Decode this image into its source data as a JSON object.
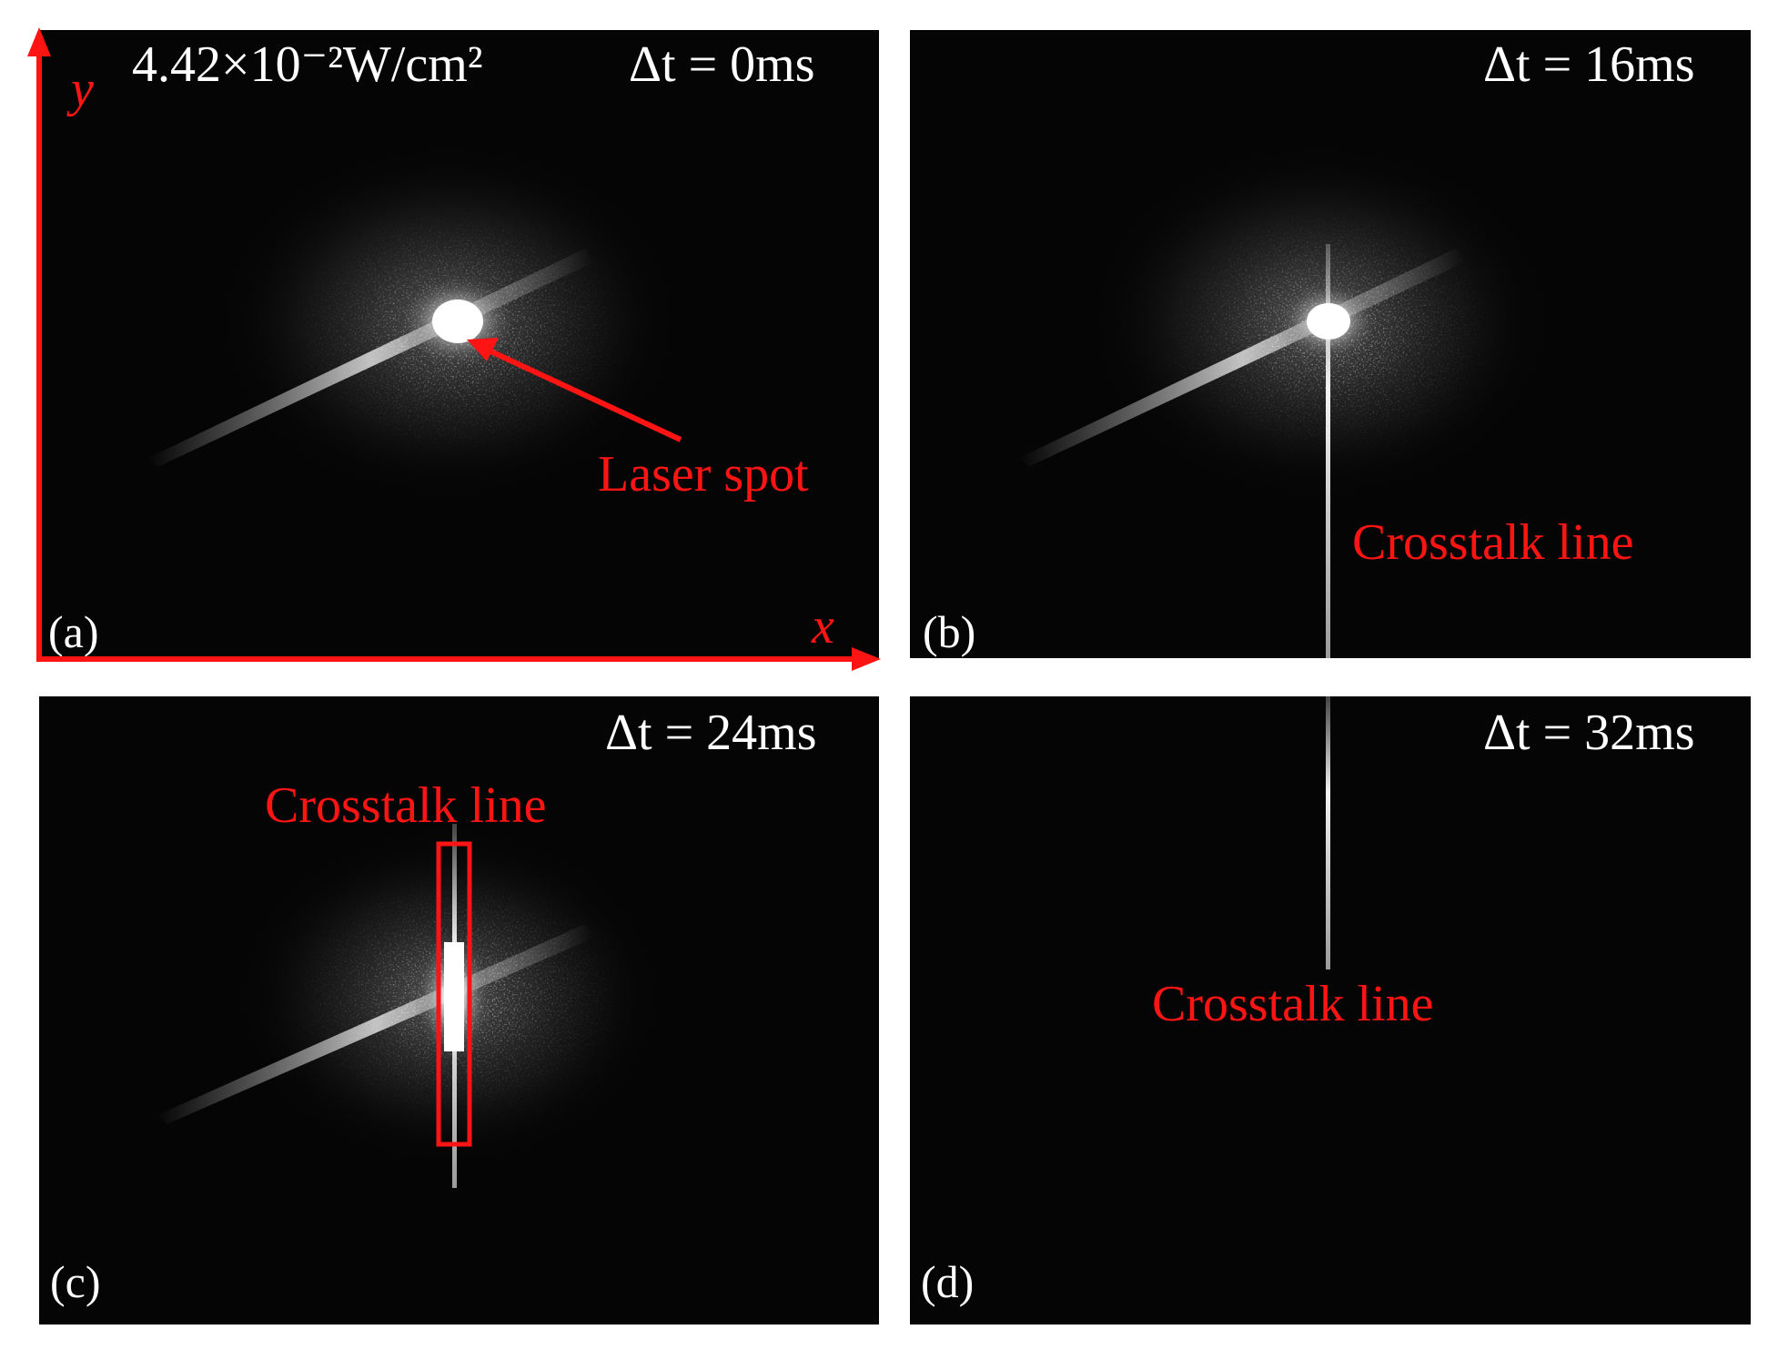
{
  "panels": [
    {
      "id": "a",
      "label": "(a)",
      "delta_t": "Δt = 0ms",
      "intensity": "4.42×10⁻²W/cm²",
      "annotation": "Laser spot",
      "crosstalk_visible": false
    },
    {
      "id": "b",
      "label": "(b)",
      "delta_t": "Δt = 16ms",
      "annotation": "Crosstalk line",
      "crosstalk_visible": true
    },
    {
      "id": "c",
      "label": "(c)",
      "delta_t": "Δt = 24ms",
      "annotation": "Crosstalk line",
      "crosstalk_visible": true
    },
    {
      "id": "d",
      "label": "(d)",
      "delta_t": "Δt = 32ms",
      "annotation": "Crosstalk line",
      "crosstalk_visible": true
    }
  ],
  "axes": {
    "x": "x",
    "y": "y"
  },
  "colors": {
    "annotation": "#ff1414",
    "background": "#050505",
    "text": "#ffffff"
  }
}
